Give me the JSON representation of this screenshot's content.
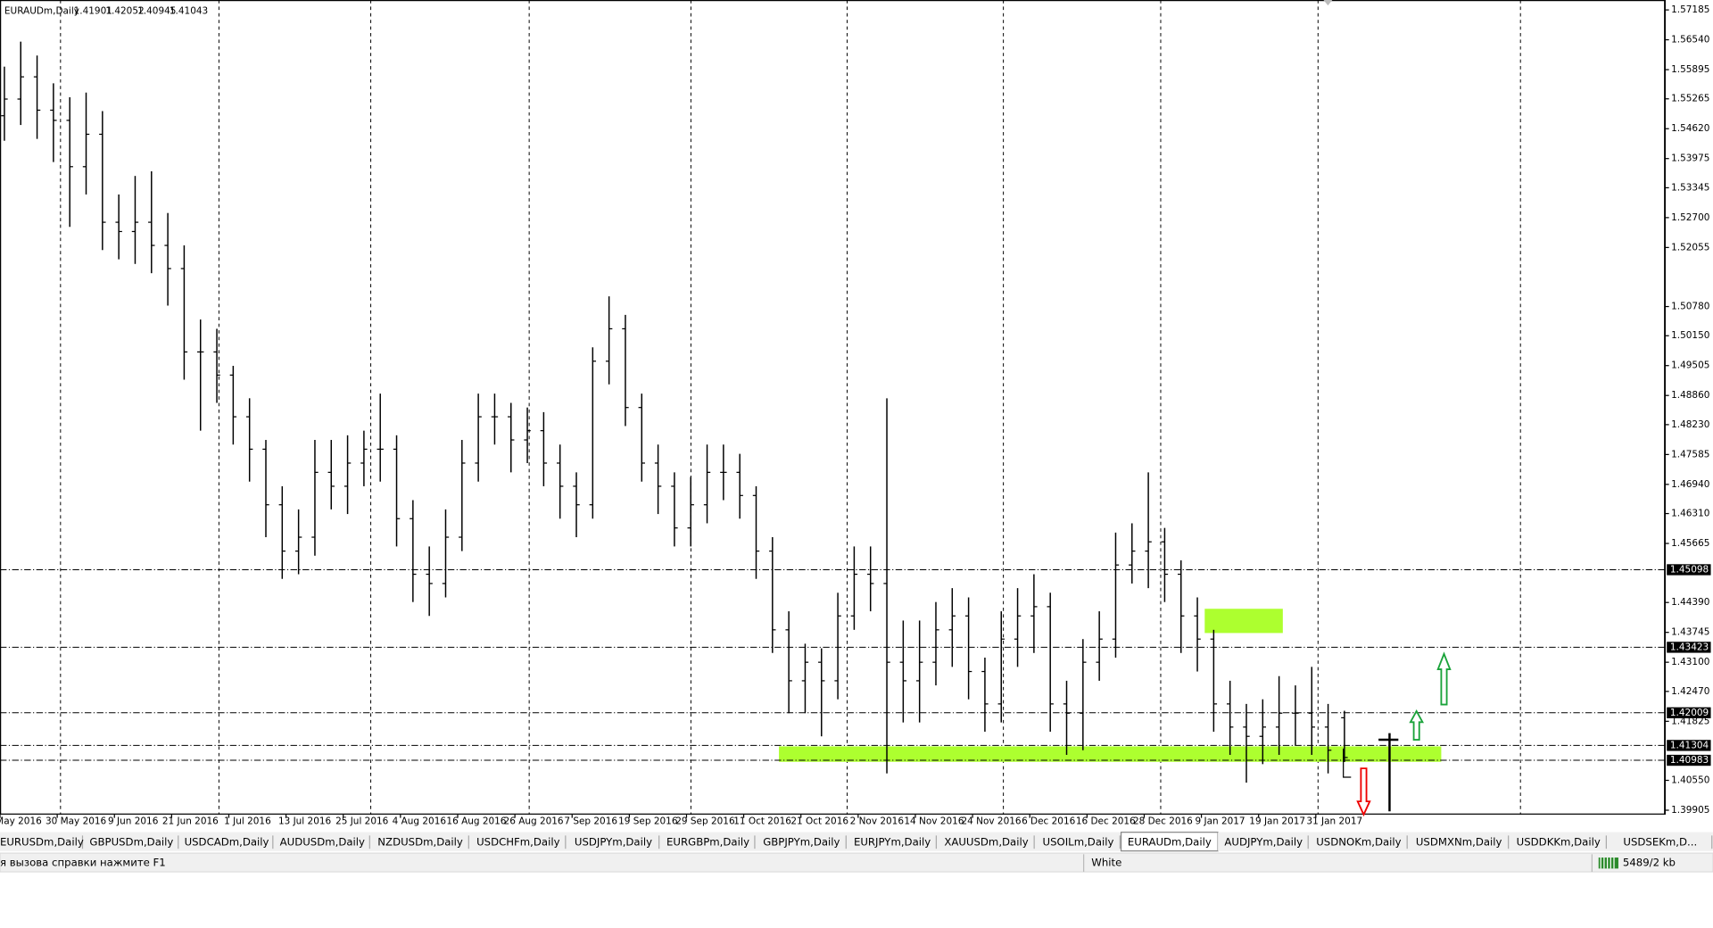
{
  "chart_data": {
    "type": "ohlc",
    "title": "EURAUDm,Daily",
    "open": [
      1.549,
      1.5526,
      1.5574,
      1.5502,
      1.548,
      1.538,
      1.545,
      1.526,
      1.524,
      1.526,
      1.521,
      1.516,
      1.498,
      1.498,
      1.493,
      1.484,
      1.477,
      1.465,
      1.455,
      1.458,
      1.472,
      1.469,
      1.474,
      1.477,
      1.477,
      1.462,
      1.45,
      1.448,
      1.458,
      1.474,
      1.484,
      1.484,
      1.479,
      1.481,
      1.474,
      1.469,
      1.465,
      1.496,
      1.503,
      1.486,
      1.474,
      1.469,
      1.46,
      1.465,
      1.472,
      1.472,
      1.467,
      1.455,
      1.438,
      1.427,
      1.431,
      1.427,
      1.441,
      1.45,
      1.448,
      1.431,
      1.427,
      1.431,
      1.438,
      1.441,
      1.429,
      1.422,
      1.436,
      1.441,
      1.443,
      1.422,
      1.42,
      1.431,
      1.436,
      1.452,
      1.455,
      1.457,
      1.45,
      1.441,
      1.436,
      1.422,
      1.417,
      1.415,
      1.417,
      1.42,
      1.42,
      1.417,
      1.41901
    ],
    "high": [
      1.5596,
      1.565,
      1.562,
      1.556,
      1.553,
      1.554,
      1.55,
      1.532,
      1.536,
      1.537,
      1.528,
      1.521,
      1.505,
      1.503,
      1.495,
      1.488,
      1.479,
      1.469,
      1.464,
      1.479,
      1.479,
      1.48,
      1.481,
      1.489,
      1.48,
      1.466,
      1.456,
      1.464,
      1.479,
      1.489,
      1.489,
      1.487,
      1.486,
      1.485,
      1.478,
      1.472,
      1.499,
      1.51,
      1.506,
      1.489,
      1.478,
      1.472,
      1.471,
      1.478,
      1.478,
      1.476,
      1.469,
      1.458,
      1.442,
      1.435,
      1.434,
      1.446,
      1.456,
      1.456,
      1.488,
      1.44,
      1.44,
      1.444,
      1.447,
      1.445,
      1.432,
      1.442,
      1.447,
      1.45,
      1.446,
      1.427,
      1.436,
      1.442,
      1.459,
      1.461,
      1.472,
      1.46,
      1.453,
      1.445,
      1.438,
      1.427,
      1.422,
      1.423,
      1.428,
      1.426,
      1.43,
      1.422,
      1.42052
    ],
    "low": [
      1.5436,
      1.547,
      1.544,
      1.539,
      1.525,
      1.532,
      1.52,
      1.518,
      1.517,
      1.515,
      1.508,
      1.492,
      1.481,
      1.487,
      1.478,
      1.47,
      1.458,
      1.449,
      1.45,
      1.454,
      1.464,
      1.463,
      1.469,
      1.47,
      1.456,
      1.444,
      1.441,
      1.445,
      1.455,
      1.47,
      1.478,
      1.472,
      1.474,
      1.469,
      1.462,
      1.458,
      1.462,
      1.491,
      1.482,
      1.47,
      1.463,
      1.456,
      1.456,
      1.461,
      1.466,
      1.462,
      1.449,
      1.433,
      1.42,
      1.42,
      1.415,
      1.423,
      1.438,
      1.442,
      1.407,
      1.418,
      1.418,
      1.426,
      1.43,
      1.423,
      1.416,
      1.418,
      1.43,
      1.433,
      1.416,
      1.411,
      1.412,
      1.427,
      1.432,
      1.448,
      1.447,
      1.444,
      1.433,
      1.429,
      1.416,
      1.411,
      1.405,
      1.409,
      1.411,
      1.413,
      1.411,
      1.407,
      1.40945
    ],
    "close": [
      1.5526,
      1.5574,
      1.5502,
      1.548,
      1.538,
      1.545,
      1.526,
      1.524,
      1.526,
      1.521,
      1.516,
      1.498,
      1.498,
      1.493,
      1.484,
      1.477,
      1.465,
      1.455,
      1.458,
      1.472,
      1.469,
      1.474,
      1.477,
      1.477,
      1.462,
      1.45,
      1.448,
      1.458,
      1.474,
      1.484,
      1.484,
      1.479,
      1.481,
      1.474,
      1.469,
      1.465,
      1.496,
      1.503,
      1.486,
      1.474,
      1.469,
      1.46,
      1.465,
      1.472,
      1.472,
      1.467,
      1.455,
      1.438,
      1.427,
      1.431,
      1.427,
      1.441,
      1.45,
      1.448,
      1.431,
      1.427,
      1.431,
      1.438,
      1.441,
      1.429,
      1.422,
      1.436,
      1.441,
      1.443,
      1.422,
      1.42,
      1.431,
      1.436,
      1.452,
      1.455,
      1.457,
      1.45,
      1.441,
      1.436,
      1.422,
      1.417,
      1.415,
      1.417,
      1.42,
      1.42,
      1.417,
      1.412,
      1.41043
    ],
    "xticks": [
      "May 2016",
      "30 May 2016",
      "9 Jun 2016",
      "21 Jun 2016",
      "1 Jul 2016",
      "13 Jul 2016",
      "25 Jul 2016",
      "4 Aug 2016",
      "16 Aug 2016",
      "26 Aug 2016",
      "7 Sep 2016",
      "19 Sep 2016",
      "29 Sep 2016",
      "11 Oct 2016",
      "21 Oct 2016",
      "2 Nov 2016",
      "14 Nov 2016",
      "24 Nov 2016",
      "6 Dec 2016",
      "16 Dec 2016",
      "28 Dec 2016",
      "9 Jan 2017",
      "19 Jan 2017",
      "31 Jan 2017"
    ],
    "ylim": [
      1.39905,
      1.57185
    ],
    "yticks": [
      1.57185,
      {
        "value": 1.5654,
        "label": "1.56540"
      },
      1.55895,
      1.55265,
      {
        "value": 1.5462,
        "label": "1.54620"
      },
      1.53975,
      1.53345,
      {
        "value": 1.527,
        "label": "1.52700"
      },
      1.52055,
      {
        "value": 1.5078,
        "label": "1.50780"
      },
      {
        "value": 1.5015,
        "label": "1.50150"
      },
      1.49505,
      {
        "value": 1.4886,
        "label": "1.48860"
      },
      {
        "value": 1.4823,
        "label": "1.48230"
      },
      1.47585,
      {
        "value": 1.4694,
        "label": "1.46940"
      },
      {
        "value": 1.4631,
        "label": "1.46310"
      },
      1.45665,
      {
        "value": 1.4439,
        "label": "1.44390"
      },
      1.43745,
      {
        "value": 1.431,
        "label": "1.43100"
      },
      {
        "value": 1.4247,
        "label": "1.42470"
      },
      1.41825,
      {
        "value": 1.4055,
        "label": "1.40550"
      },
      1.39905
    ],
    "levels": [
      1.45098,
      1.43423,
      1.42009,
      1.41304,
      1.40983
    ],
    "zones": [
      {
        "top": 1.44254,
        "bottom": 1.43731
      },
      {
        "top": 1.41283,
        "bottom": 1.4095
      }
    ],
    "color": "#000000",
    "zone_color": "#adff2f"
  },
  "tabs": [
    "EURUSDm,Daily",
    "GBPUSDm,Daily",
    "USDCADm,Daily",
    "AUDUSDm,Daily",
    "NZDUSDm,Daily",
    "USDCHFm,Daily",
    "USDJPYm,Daily",
    "EURGBPm,Daily",
    "GBPJPYm,Daily",
    "EURJPYm,Daily",
    "XAUUSDm,Daily",
    "USOILm,Daily",
    "EURAUDm,Daily",
    "AUDJPYm,Daily",
    "USDNOKm,Daily",
    "USDMXNm,Daily",
    "USDDKKm,Daily",
    "USDSEKm,D..."
  ],
  "active_tab": 12,
  "status": {
    "help": "я вызова справки нажмите F1",
    "profile": "White",
    "traffic": "5489/2 kb"
  }
}
